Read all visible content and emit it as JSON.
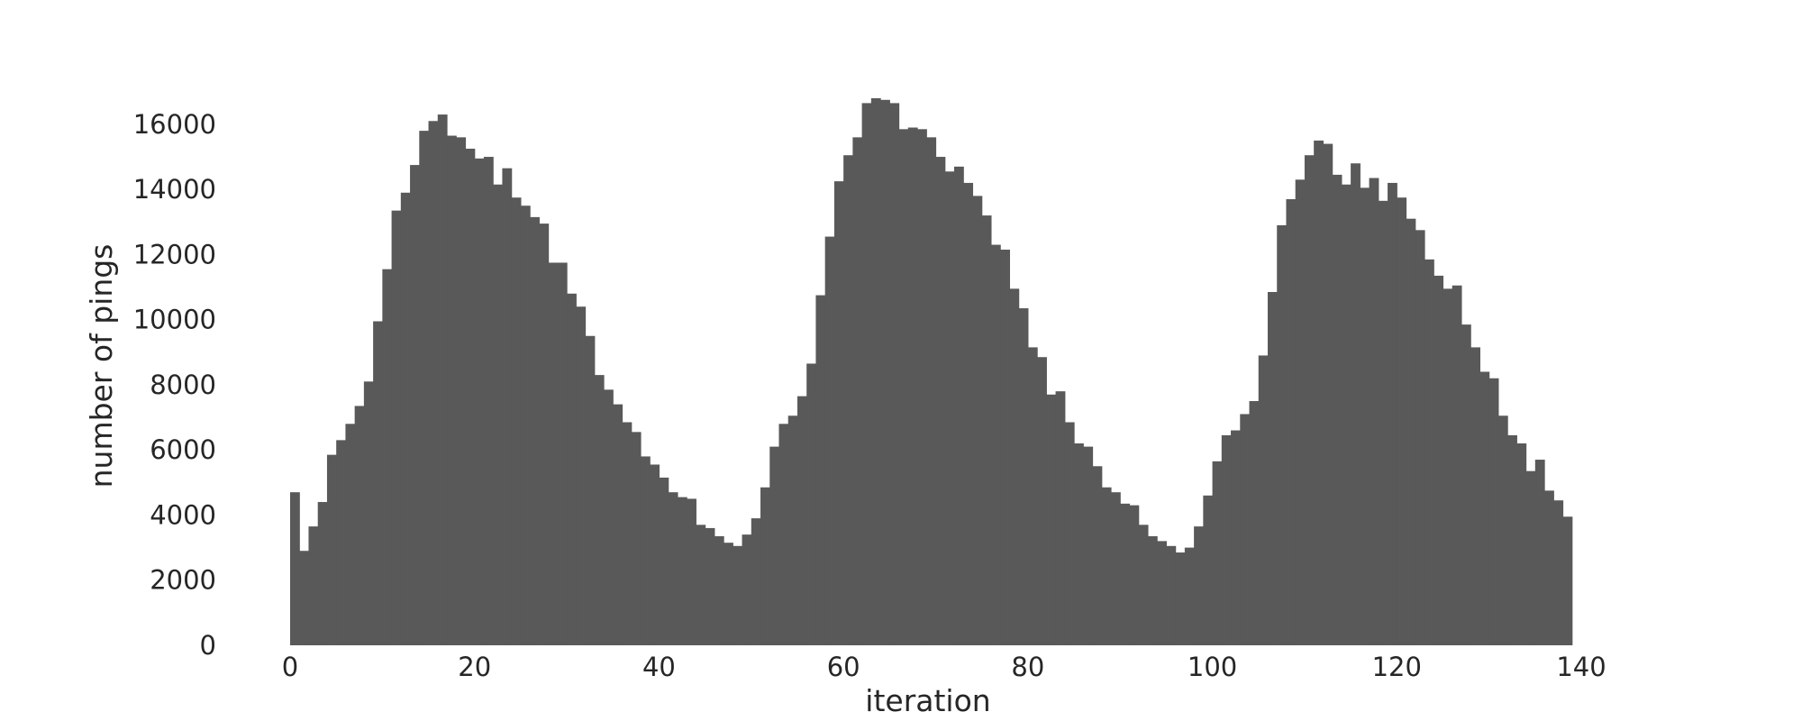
{
  "colors": {
    "bar": "#595959",
    "text": "#262626",
    "background": "#ffffff"
  },
  "chart_data": {
    "type": "bar",
    "xlabel": "iteration",
    "ylabel": "number of pings",
    "xlim": [
      0,
      140
    ],
    "ylim": [
      0,
      16800
    ],
    "grid": false,
    "xticks": [
      0,
      20,
      40,
      60,
      80,
      100,
      120,
      140
    ],
    "yticks": [
      0,
      2000,
      4000,
      6000,
      8000,
      10000,
      12000,
      14000,
      16000
    ],
    "bin_width": 1,
    "x_start": 0,
    "values": [
      4700,
      2900,
      3650,
      4400,
      5850,
      6300,
      6800,
      7350,
      8100,
      9950,
      11550,
      13350,
      13900,
      14750,
      15800,
      16100,
      16300,
      15650,
      15600,
      15250,
      14950,
      15000,
      14150,
      14650,
      13750,
      13500,
      13150,
      12950,
      11750,
      11750,
      10800,
      10400,
      9500,
      8300,
      7850,
      7400,
      6850,
      6550,
      5800,
      5550,
      5150,
      4700,
      4550,
      4500,
      3700,
      3600,
      3350,
      3150,
      3050,
      3400,
      3900,
      4850,
      6100,
      6800,
      7050,
      7650,
      8650,
      10750,
      12550,
      14250,
      15050,
      15600,
      16650,
      16800,
      16750,
      16650,
      15850,
      15900,
      15850,
      15600,
      15000,
      14550,
      14700,
      14200,
      13800,
      13200,
      12300,
      12150,
      10950,
      10350,
      9150,
      8850,
      7700,
      7800,
      6850,
      6200,
      6100,
      5500,
      4850,
      4700,
      4350,
      4300,
      3700,
      3350,
      3200,
      3050,
      2850,
      3000,
      3650,
      4600,
      5650,
      6450,
      6600,
      7100,
      7500,
      8900,
      10850,
      12900,
      13700,
      14300,
      15050,
      15500,
      15400,
      14450,
      14150,
      14800,
      14050,
      14350,
      13650,
      14200,
      13750,
      13100,
      12750,
      11850,
      11350,
      10950,
      11050,
      9850,
      9150,
      8400,
      8200,
      7050,
      6450,
      6200,
      5350,
      5700,
      4750,
      4450,
      3950
    ]
  }
}
